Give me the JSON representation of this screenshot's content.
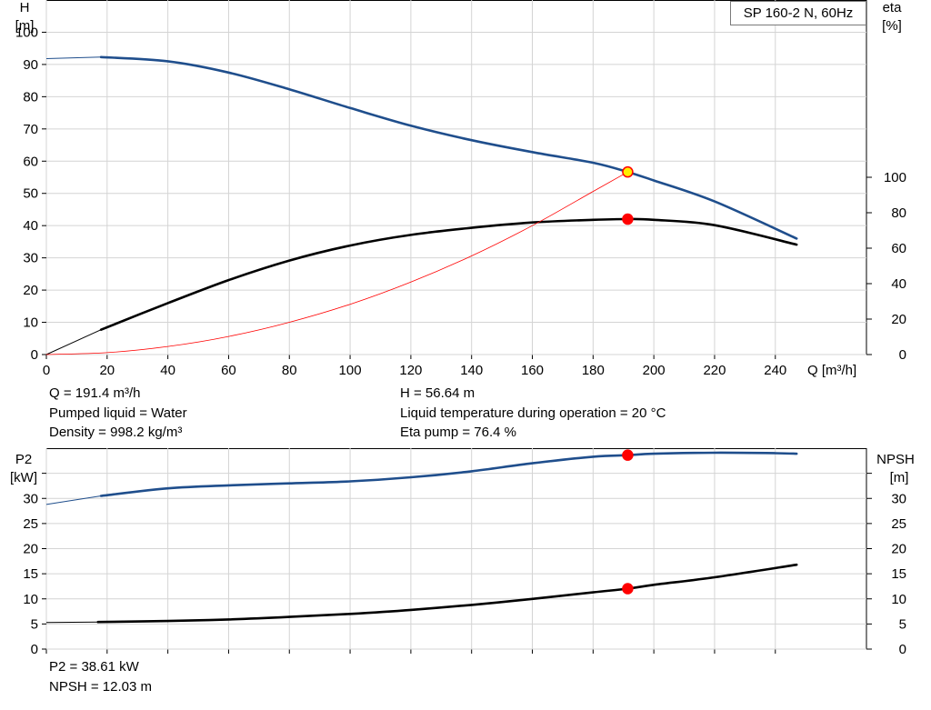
{
  "chart_data": [
    {
      "type": "line",
      "title": "SP 160-2 N, 60Hz",
      "xlabel": "Q [m³/h]",
      "ylabel": "H\n[m]",
      "y2label": "eta\n[%]",
      "xlim": [
        0,
        270
      ],
      "ylim": [
        0,
        110
      ],
      "y2lim": [
        0,
        200
      ],
      "xticks": [
        0,
        20,
        40,
        60,
        80,
        100,
        120,
        140,
        160,
        180,
        200,
        220,
        240
      ],
      "yticks": [
        0,
        10,
        20,
        30,
        40,
        50,
        60,
        70,
        80,
        90,
        100
      ],
      "y2ticks": [
        0,
        20,
        40,
        60,
        80,
        100
      ],
      "grid": true,
      "series": [
        {
          "axis": "left",
          "color": "#1f4e8c",
          "thin_x": [
            0,
            18
          ],
          "thin_y": [
            91.8,
            92.3
          ],
          "x": [
            18,
            40,
            60,
            80,
            100,
            120,
            140,
            160,
            180,
            191.4,
            200,
            220,
            247
          ],
          "y": [
            92.3,
            91,
            87.5,
            82.3,
            76.5,
            71,
            66.5,
            62.8,
            59.5,
            56.64,
            54,
            47.5,
            36
          ]
        },
        {
          "axis": "right",
          "color": "#000000",
          "thin_x": [
            0,
            18
          ],
          "thin_y": [
            0,
            14
          ],
          "x": [
            18,
            40,
            60,
            80,
            100,
            120,
            140,
            160,
            180,
            191.4,
            200,
            220,
            247
          ],
          "y": [
            14,
            29,
            42,
            53,
            61.5,
            67.5,
            71.5,
            74.5,
            76,
            76.4,
            76,
            73,
            62
          ]
        },
        {
          "axis": "left",
          "color": "#ff0000",
          "x": [
            0,
            20,
            40,
            60,
            80,
            100,
            120,
            140,
            160,
            180,
            191.4
          ],
          "y": [
            0,
            0.6,
            2.5,
            5.6,
            10,
            15.6,
            22.5,
            30.6,
            40,
            50.6,
            56.64
          ]
        }
      ],
      "markers": [
        {
          "x": 191.4,
          "y": 56.64,
          "axis": "left",
          "fill": "#ffee00",
          "stroke": "#ff0000"
        },
        {
          "x": 191.4,
          "y": 76.4,
          "axis": "right",
          "fill": "#ff0000",
          "stroke": "#ff0000"
        }
      ]
    },
    {
      "type": "line",
      "title": "",
      "xlabel": "",
      "ylabel": "P2\n[kW]",
      "y2label": "NPSH\n[m]",
      "xlim": [
        0,
        270
      ],
      "ylim": [
        0,
        40
      ],
      "y2lim": [
        0,
        40
      ],
      "xticks": [
        0,
        20,
        40,
        60,
        80,
        100,
        120,
        140,
        160,
        180,
        200,
        220,
        240
      ],
      "yticks": [
        0,
        5,
        10,
        15,
        20,
        25,
        30,
        35
      ],
      "ytick_labels": [
        "0",
        "5",
        "10",
        "15",
        "20",
        "25",
        "30",
        ""
      ],
      "y2ticks": [
        0,
        5,
        10,
        15,
        20,
        25,
        30,
        35
      ],
      "y2tick_labels": [
        "0",
        "5",
        "10",
        "15",
        "20",
        "25",
        "30",
        ""
      ],
      "grid": true,
      "series": [
        {
          "axis": "left",
          "color": "#1f4e8c",
          "thin_x": [
            0,
            18
          ],
          "thin_y": [
            28.8,
            30.5
          ],
          "x": [
            18,
            40,
            60,
            80,
            100,
            120,
            140,
            160,
            180,
            191.4,
            200,
            220,
            240,
            247
          ],
          "y": [
            30.5,
            32,
            32.6,
            33,
            33.4,
            34.2,
            35.4,
            37,
            38.3,
            38.61,
            38.9,
            39.1,
            39,
            38.9
          ]
        },
        {
          "axis": "right",
          "color": "#000000",
          "thin_x": [
            0,
            17
          ],
          "thin_y": [
            5.3,
            5.4
          ],
          "x": [
            17,
            40,
            60,
            80,
            100,
            120,
            140,
            160,
            180,
            191.4,
            200,
            220,
            247
          ],
          "y": [
            5.4,
            5.6,
            5.9,
            6.4,
            7,
            7.8,
            8.8,
            10,
            11.3,
            12.03,
            12.8,
            14.3,
            16.8
          ]
        }
      ],
      "markers": [
        {
          "x": 191.4,
          "y": 38.61,
          "axis": "left",
          "fill": "#ff0000",
          "stroke": "#ff0000"
        },
        {
          "x": 191.4,
          "y": 12.03,
          "axis": "right",
          "fill": "#ff0000",
          "stroke": "#ff0000"
        }
      ]
    }
  ],
  "info": {
    "q": "Q = 191.4 m³/h",
    "liquid": "Pumped liquid = Water",
    "density": "Density = 998.2 kg/m³",
    "h": "H = 56.64 m",
    "temp": "Liquid temperature during operation = 20 °C",
    "eta": "Eta pump = 76.4 %",
    "p2": "P2 = 38.61 kW",
    "npsh": "NPSH = 12.03 m"
  }
}
